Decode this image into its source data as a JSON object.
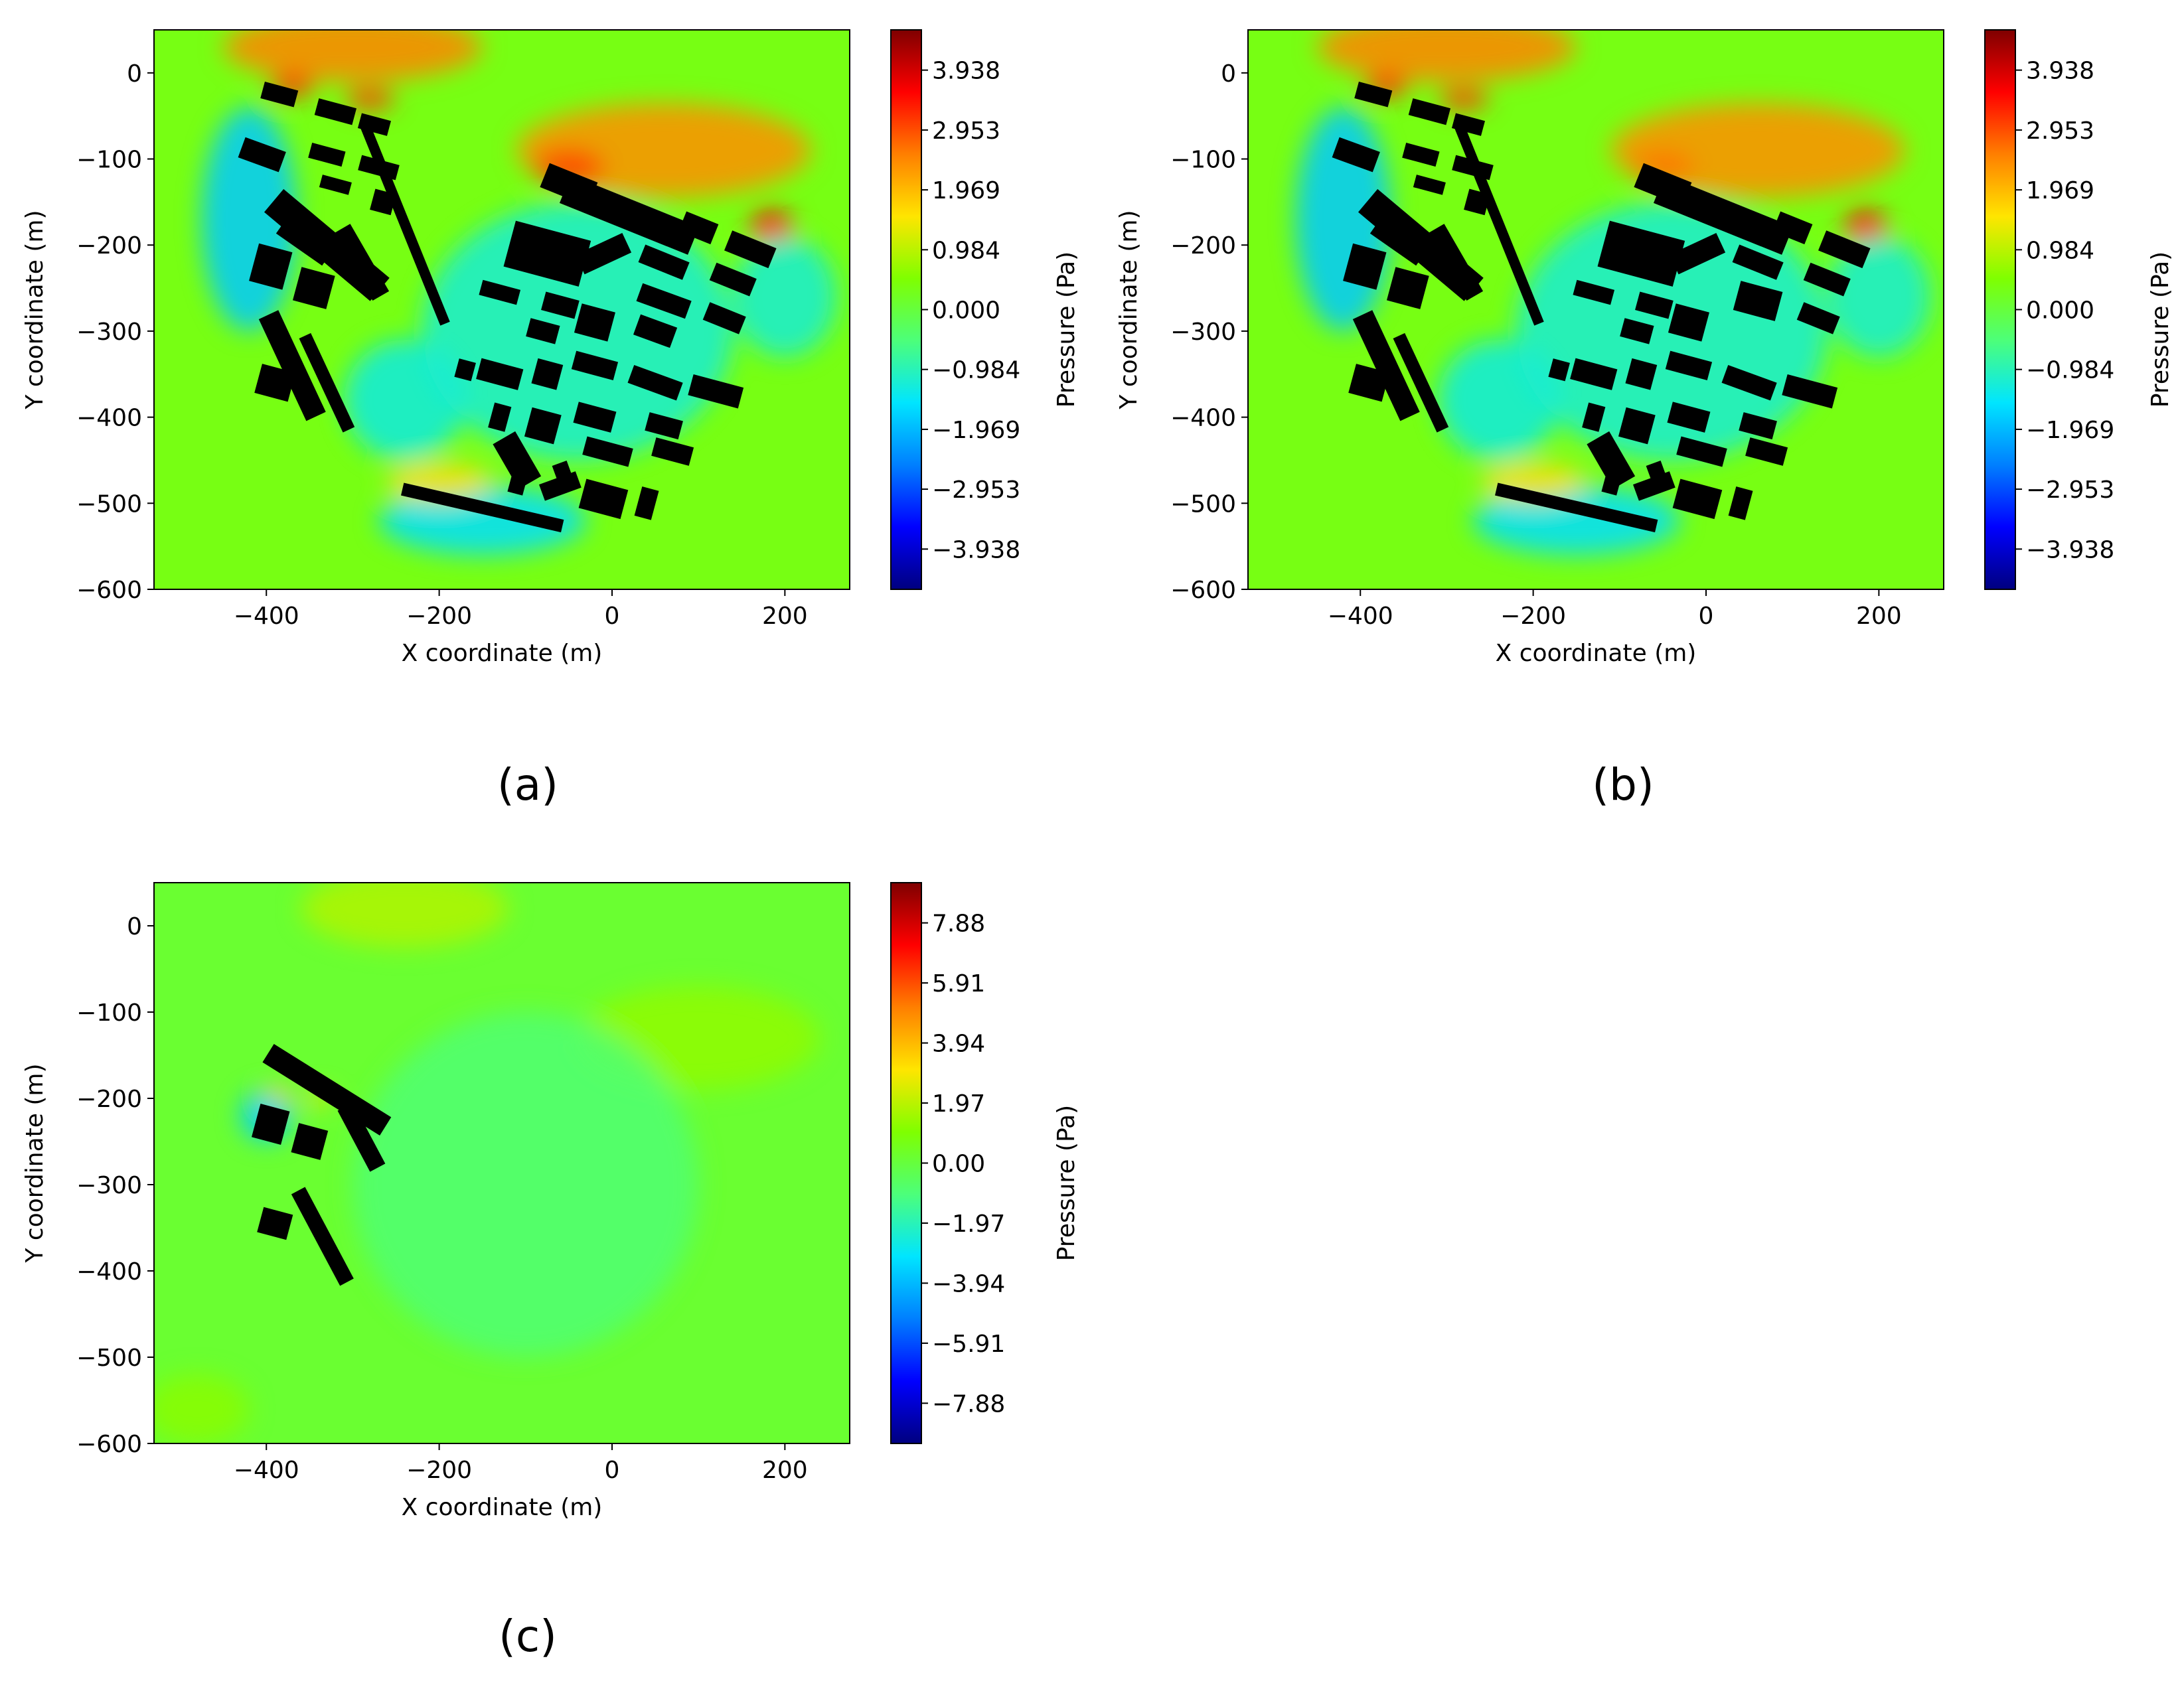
{
  "figure": {
    "colors": {
      "background": "#ffffff",
      "building": "#000000",
      "axis": "#000000",
      "field_base": "#4cdc6a",
      "colormap": [
        "#00007f",
        "#0000ff",
        "#007fff",
        "#00e5ff",
        "#4cff7a",
        "#7fff00",
        "#ffe500",
        "#ff7f00",
        "#ff0000",
        "#7f0000"
      ]
    }
  },
  "chart_data": [
    {
      "id": "a",
      "type": "heatmap",
      "panel_label": "(a)",
      "xlabel": "X coordinate (m)",
      "ylabel": "Y coordinate (m)",
      "colorbar_label": "Pressure (Pa)",
      "xlim": [
        -530,
        275
      ],
      "ylim": [
        -600,
        50
      ],
      "xticks": [
        -400,
        -200,
        0,
        200
      ],
      "xtick_labels": [
        "−400",
        "−200",
        "0",
        "200"
      ],
      "yticks": [
        0,
        -100,
        -200,
        -300,
        -400,
        -500,
        -600
      ],
      "ytick_labels": [
        "0",
        "−100",
        "−200",
        "−300",
        "−400",
        "−500",
        "−600"
      ],
      "clim": [
        -4.6,
        4.6
      ],
      "colorbar_ticks": [
        3.938,
        2.953,
        1.969,
        0.984,
        0.0,
        -0.984,
        -1.969,
        -2.953,
        -3.938
      ],
      "colorbar_tick_labels": [
        "3.938",
        "2.953",
        "1.969",
        "0.984",
        "0.000",
        "−0.984",
        "−1.969",
        "−2.953",
        "−3.938"
      ],
      "background_value": 0.35,
      "field_features": [
        {
          "kind": "windward",
          "x": -300,
          "y": 30,
          "rx": 150,
          "ry": 40,
          "value": 2.5
        },
        {
          "kind": "windward",
          "x": 60,
          "y": -90,
          "rx": 170,
          "ry": 55,
          "value": 2.4
        },
        {
          "kind": "peak",
          "x": -370,
          "y": -15,
          "rx": 25,
          "ry": 12,
          "value": 3.4
        },
        {
          "kind": "peak",
          "x": -280,
          "y": -30,
          "rx": 28,
          "ry": 12,
          "value": 3.1
        },
        {
          "kind": "peak",
          "x": -50,
          "y": -110,
          "rx": 40,
          "ry": 20,
          "value": 3.0
        },
        {
          "kind": "peak",
          "x": 185,
          "y": -180,
          "rx": 25,
          "ry": 20,
          "value": 3.6
        },
        {
          "kind": "wake",
          "x": -420,
          "y": -170,
          "rx": 55,
          "ry": 130,
          "value": -1.8
        },
        {
          "kind": "wake",
          "x": -240,
          "y": -380,
          "rx": 70,
          "ry": 70,
          "value": -1.3
        },
        {
          "kind": "wake",
          "x": -150,
          "y": -520,
          "rx": 120,
          "ry": 40,
          "value": -1.6
        },
        {
          "kind": "wake",
          "x": -40,
          "y": -300,
          "rx": 180,
          "ry": 150,
          "value": -1.2
        },
        {
          "kind": "wake",
          "x": 200,
          "y": -260,
          "rx": 60,
          "ry": 70,
          "value": -1.2
        },
        {
          "kind": "windward",
          "x": -200,
          "y": -475,
          "rx": 60,
          "ry": 22,
          "value": 1.6
        }
      ],
      "buildings": [
        [
          -385,
          -25,
          40,
          20,
          -15
        ],
        [
          -320,
          -45,
          45,
          20,
          -15
        ],
        [
          -275,
          -60,
          35,
          18,
          -15
        ],
        [
          -405,
          -95,
          50,
          25,
          -20
        ],
        [
          -330,
          -95,
          40,
          18,
          -15
        ],
        [
          -270,
          -110,
          45,
          18,
          -15
        ],
        [
          -320,
          -130,
          35,
          15,
          -15
        ],
        [
          -265,
          -150,
          25,
          25,
          -15
        ],
        [
          -330,
          -200,
          160,
          35,
          -40
        ],
        [
          -355,
          -195,
          65,
          25,
          -35
        ],
        [
          -395,
          -225,
          40,
          45,
          -15
        ],
        [
          -345,
          -250,
          40,
          40,
          -15
        ],
        [
          -290,
          -220,
          90,
          22,
          -60
        ],
        [
          -240,
          -175,
          250,
          12,
          -68
        ],
        [
          -370,
          -340,
          130,
          25,
          -65
        ],
        [
          -330,
          -360,
          120,
          15,
          -65
        ],
        [
          -390,
          -360,
          40,
          35,
          -15
        ],
        [
          -50,
          -130,
          60,
          30,
          -22
        ],
        [
          20,
          -165,
          160,
          35,
          -22
        ],
        [
          100,
          -180,
          40,
          25,
          -22
        ],
        [
          160,
          -205,
          55,
          25,
          -22
        ],
        [
          -75,
          -210,
          90,
          55,
          -15
        ],
        [
          -10,
          -210,
          25,
          60,
          -65
        ],
        [
          60,
          -220,
          55,
          22,
          -22
        ],
        [
          140,
          -240,
          50,
          22,
          -22
        ],
        [
          -130,
          -255,
          45,
          18,
          -15
        ],
        [
          -60,
          -270,
          40,
          22,
          -15
        ],
        [
          60,
          -265,
          60,
          22,
          -20
        ],
        [
          130,
          -285,
          45,
          22,
          -22
        ],
        [
          -80,
          -300,
          35,
          22,
          -15
        ],
        [
          -20,
          -290,
          40,
          35,
          -15
        ],
        [
          50,
          -300,
          45,
          25,
          -20
        ],
        [
          -170,
          -345,
          20,
          22,
          -15
        ],
        [
          -130,
          -350,
          50,
          25,
          -15
        ],
        [
          -75,
          -350,
          30,
          30,
          -15
        ],
        [
          -20,
          -340,
          50,
          22,
          -15
        ],
        [
          50,
          -360,
          60,
          22,
          -20
        ],
        [
          120,
          -370,
          60,
          25,
          -15
        ],
        [
          -130,
          -400,
          20,
          30,
          -15
        ],
        [
          -80,
          -410,
          35,
          35,
          -15
        ],
        [
          -20,
          -400,
          45,
          25,
          -15
        ],
        [
          60,
          -410,
          40,
          22,
          -15
        ],
        [
          -110,
          -450,
          60,
          30,
          -60
        ],
        [
          -55,
          -470,
          35,
          18,
          -70
        ],
        [
          -5,
          -440,
          55,
          22,
          -15
        ],
        [
          70,
          -440,
          45,
          22,
          -15
        ],
        [
          -110,
          -480,
          18,
          18,
          -15
        ],
        [
          -60,
          -480,
          20,
          45,
          -70
        ],
        [
          -10,
          -495,
          50,
          35,
          -15
        ],
        [
          40,
          -500,
          20,
          35,
          -15
        ],
        [
          -150,
          -505,
          190,
          15,
          -13
        ]
      ]
    },
    {
      "id": "b",
      "type": "heatmap",
      "panel_label": "(b)",
      "xlabel": "X coordinate (m)",
      "ylabel": "Y coordinate (m)",
      "colorbar_label": "Pressure (Pa)",
      "xlim": [
        -530,
        275
      ],
      "ylim": [
        -600,
        50
      ],
      "xticks": [
        -400,
        -200,
        0,
        200
      ],
      "xtick_labels": [
        "−400",
        "−200",
        "0",
        "200"
      ],
      "yticks": [
        0,
        -100,
        -200,
        -300,
        -400,
        -500,
        -600
      ],
      "ytick_labels": [
        "0",
        "−100",
        "−200",
        "−300",
        "−400",
        "−500",
        "−600"
      ],
      "clim": [
        -4.6,
        4.6
      ],
      "colorbar_ticks": [
        3.938,
        2.953,
        1.969,
        0.984,
        0.0,
        -0.984,
        -1.969,
        -2.953,
        -3.938
      ],
      "colorbar_tick_labels": [
        "3.938",
        "2.953",
        "1.969",
        "0.984",
        "0.000",
        "−0.984",
        "−1.969",
        "−2.953",
        "−3.938"
      ],
      "background_value": 0.35,
      "field_features": [
        {
          "kind": "windward",
          "x": -300,
          "y": 30,
          "rx": 150,
          "ry": 40,
          "value": 2.5
        },
        {
          "kind": "windward",
          "x": 60,
          "y": -90,
          "rx": 170,
          "ry": 55,
          "value": 2.4
        },
        {
          "kind": "peak",
          "x": -370,
          "y": -15,
          "rx": 25,
          "ry": 12,
          "value": 3.4
        },
        {
          "kind": "peak",
          "x": -280,
          "y": -30,
          "rx": 28,
          "ry": 12,
          "value": 3.1
        },
        {
          "kind": "peak",
          "x": -50,
          "y": -110,
          "rx": 35,
          "ry": 18,
          "value": 2.6
        },
        {
          "kind": "peak",
          "x": 185,
          "y": -180,
          "rx": 25,
          "ry": 20,
          "value": 3.6
        },
        {
          "kind": "wake",
          "x": -420,
          "y": -170,
          "rx": 55,
          "ry": 130,
          "value": -1.8
        },
        {
          "kind": "wake",
          "x": -240,
          "y": -380,
          "rx": 70,
          "ry": 70,
          "value": -1.3
        },
        {
          "kind": "wake",
          "x": -150,
          "y": -520,
          "rx": 120,
          "ry": 40,
          "value": -1.6
        },
        {
          "kind": "wake",
          "x": -40,
          "y": -300,
          "rx": 180,
          "ry": 150,
          "value": -1.2
        },
        {
          "kind": "wake",
          "x": 200,
          "y": -260,
          "rx": 60,
          "ry": 70,
          "value": -1.2
        },
        {
          "kind": "windward",
          "x": -200,
          "y": -475,
          "rx": 60,
          "ry": 22,
          "value": 1.6
        }
      ],
      "buildings": [
        [
          -385,
          -25,
          40,
          20,
          -15
        ],
        [
          -320,
          -45,
          45,
          20,
          -15
        ],
        [
          -275,
          -60,
          35,
          18,
          -15
        ],
        [
          -405,
          -95,
          50,
          25,
          -20
        ],
        [
          -330,
          -95,
          40,
          18,
          -15
        ],
        [
          -270,
          -110,
          45,
          18,
          -15
        ],
        [
          -320,
          -130,
          35,
          15,
          -15
        ],
        [
          -265,
          -150,
          25,
          25,
          -15
        ],
        [
          -330,
          -200,
          160,
          35,
          -40
        ],
        [
          -355,
          -195,
          65,
          25,
          -35
        ],
        [
          -395,
          -225,
          40,
          45,
          -15
        ],
        [
          -345,
          -250,
          40,
          40,
          -15
        ],
        [
          -290,
          -220,
          90,
          22,
          -60
        ],
        [
          -240,
          -175,
          250,
          12,
          -68
        ],
        [
          -370,
          -340,
          130,
          25,
          -65
        ],
        [
          -330,
          -360,
          120,
          15,
          -65
        ],
        [
          -390,
          -360,
          40,
          35,
          -15
        ],
        [
          -50,
          -130,
          60,
          30,
          -22
        ],
        [
          20,
          -165,
          160,
          35,
          -22
        ],
        [
          100,
          -180,
          40,
          25,
          -22
        ],
        [
          160,
          -205,
          55,
          25,
          -22
        ],
        [
          -75,
          -210,
          90,
          55,
          -15
        ],
        [
          -10,
          -210,
          25,
          60,
          -65
        ],
        [
          60,
          -220,
          55,
          22,
          -22
        ],
        [
          140,
          -240,
          50,
          22,
          -22
        ],
        [
          -130,
          -255,
          45,
          18,
          -15
        ],
        [
          -60,
          -270,
          40,
          22,
          -15
        ],
        [
          60,
          -265,
          50,
          35,
          -15
        ],
        [
          130,
          -285,
          45,
          22,
          -22
        ],
        [
          -80,
          -300,
          35,
          22,
          -15
        ],
        [
          -20,
          -290,
          40,
          35,
          -15
        ],
        [
          -170,
          -345,
          20,
          22,
          -15
        ],
        [
          -130,
          -350,
          50,
          25,
          -15
        ],
        [
          -75,
          -350,
          30,
          30,
          -15
        ],
        [
          -20,
          -340,
          50,
          22,
          -15
        ],
        [
          50,
          -360,
          60,
          22,
          -20
        ],
        [
          120,
          -370,
          60,
          25,
          -15
        ],
        [
          -130,
          -400,
          20,
          30,
          -15
        ],
        [
          -80,
          -410,
          35,
          35,
          -15
        ],
        [
          -20,
          -400,
          45,
          25,
          -15
        ],
        [
          60,
          -410,
          40,
          22,
          -15
        ],
        [
          -110,
          -450,
          60,
          30,
          -60
        ],
        [
          -55,
          -470,
          35,
          18,
          -70
        ],
        [
          -5,
          -440,
          55,
          22,
          -15
        ],
        [
          70,
          -440,
          45,
          22,
          -15
        ],
        [
          -110,
          -480,
          18,
          18,
          -15
        ],
        [
          -60,
          -480,
          20,
          45,
          -70
        ],
        [
          -10,
          -495,
          50,
          35,
          -15
        ],
        [
          40,
          -500,
          20,
          35,
          -15
        ],
        [
          -150,
          -505,
          190,
          15,
          -13
        ]
      ]
    },
    {
      "id": "c",
      "type": "heatmap",
      "panel_label": "(c)",
      "xlabel": "X coordinate (m)",
      "ylabel": "Y coordinate (m)",
      "colorbar_label": "Pressure (Pa)",
      "xlim": [
        -530,
        275
      ],
      "ylim": [
        -600,
        50
      ],
      "xticks": [
        -400,
        -200,
        0,
        200
      ],
      "xtick_labels": [
        "−400",
        "−200",
        "0",
        "200"
      ],
      "yticks": [
        0,
        -100,
        -200,
        -300,
        -400,
        -500,
        -600
      ],
      "ytick_labels": [
        "0",
        "−100",
        "−200",
        "−300",
        "−400",
        "−500",
        "−600"
      ],
      "clim": [
        -9.2,
        9.2
      ],
      "colorbar_ticks": [
        7.88,
        5.91,
        3.94,
        1.97,
        0.0,
        -1.97,
        -3.94,
        -5.91,
        -7.88
      ],
      "colorbar_tick_labels": [
        "7.88",
        "5.91",
        "3.94",
        "1.97",
        "0.00",
        "−1.97",
        "−3.94",
        "−5.91",
        "−7.88"
      ],
      "background_value": 0.2,
      "field_features": [
        {
          "kind": "windward",
          "x": -240,
          "y": 20,
          "rx": 120,
          "ry": 45,
          "value": 1.8
        },
        {
          "kind": "windward",
          "x": 100,
          "y": -130,
          "rx": 140,
          "ry": 60,
          "value": 1.3
        },
        {
          "kind": "wake",
          "x": -100,
          "y": -300,
          "rx": 200,
          "ry": 200,
          "value": -0.9
        },
        {
          "kind": "wake",
          "x": -400,
          "y": -220,
          "rx": 30,
          "ry": 30,
          "value": -3.5
        },
        {
          "kind": "peak",
          "x": -385,
          "y": -195,
          "rx": 15,
          "ry": 8,
          "value": 3.5
        },
        {
          "kind": "peak",
          "x": -340,
          "y": -200,
          "rx": 15,
          "ry": 8,
          "value": 3.2
        },
        {
          "kind": "windward",
          "x": -480,
          "y": -560,
          "rx": 60,
          "ry": 40,
          "value": 1.2
        }
      ],
      "buildings": [
        [
          -330,
          -190,
          160,
          25,
          -32
        ],
        [
          -290,
          -245,
          80,
          20,
          -62
        ],
        [
          -395,
          -230,
          35,
          40,
          -15
        ],
        [
          -350,
          -250,
          35,
          35,
          -15
        ],
        [
          -335,
          -360,
          120,
          18,
          -62
        ],
        [
          -390,
          -345,
          35,
          30,
          -15
        ]
      ]
    }
  ]
}
